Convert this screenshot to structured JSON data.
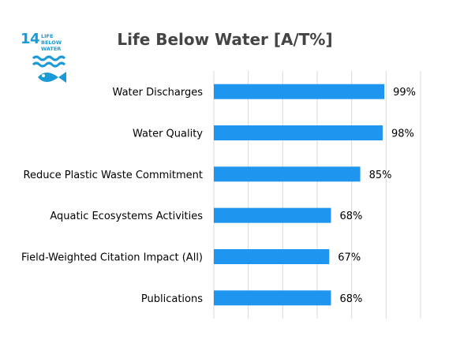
{
  "logo": {
    "number": "14",
    "text_line1": "LIFE",
    "text_line2": "BELOW WATER",
    "color": "#1a9ad6",
    "icon": "fish-icon"
  },
  "chart_data": {
    "type": "bar",
    "orientation": "horizontal",
    "title": "Life Below Water [A/T%]",
    "categories": [
      "Water Discharges",
      "Water Quality",
      "Reduce Plastic Waste Commitment",
      "Aquatic Ecosystems Activities",
      "Field-Weighted Citation Impact (All)",
      "Publications"
    ],
    "values": [
      99,
      98,
      85,
      68,
      67,
      68
    ],
    "value_labels": [
      "99%",
      "98%",
      "85%",
      "68%",
      "67%",
      "68%"
    ],
    "xlim": [
      0,
      120
    ],
    "grid": "vertical",
    "bar_color": "#1e96f0",
    "legend": "none"
  }
}
